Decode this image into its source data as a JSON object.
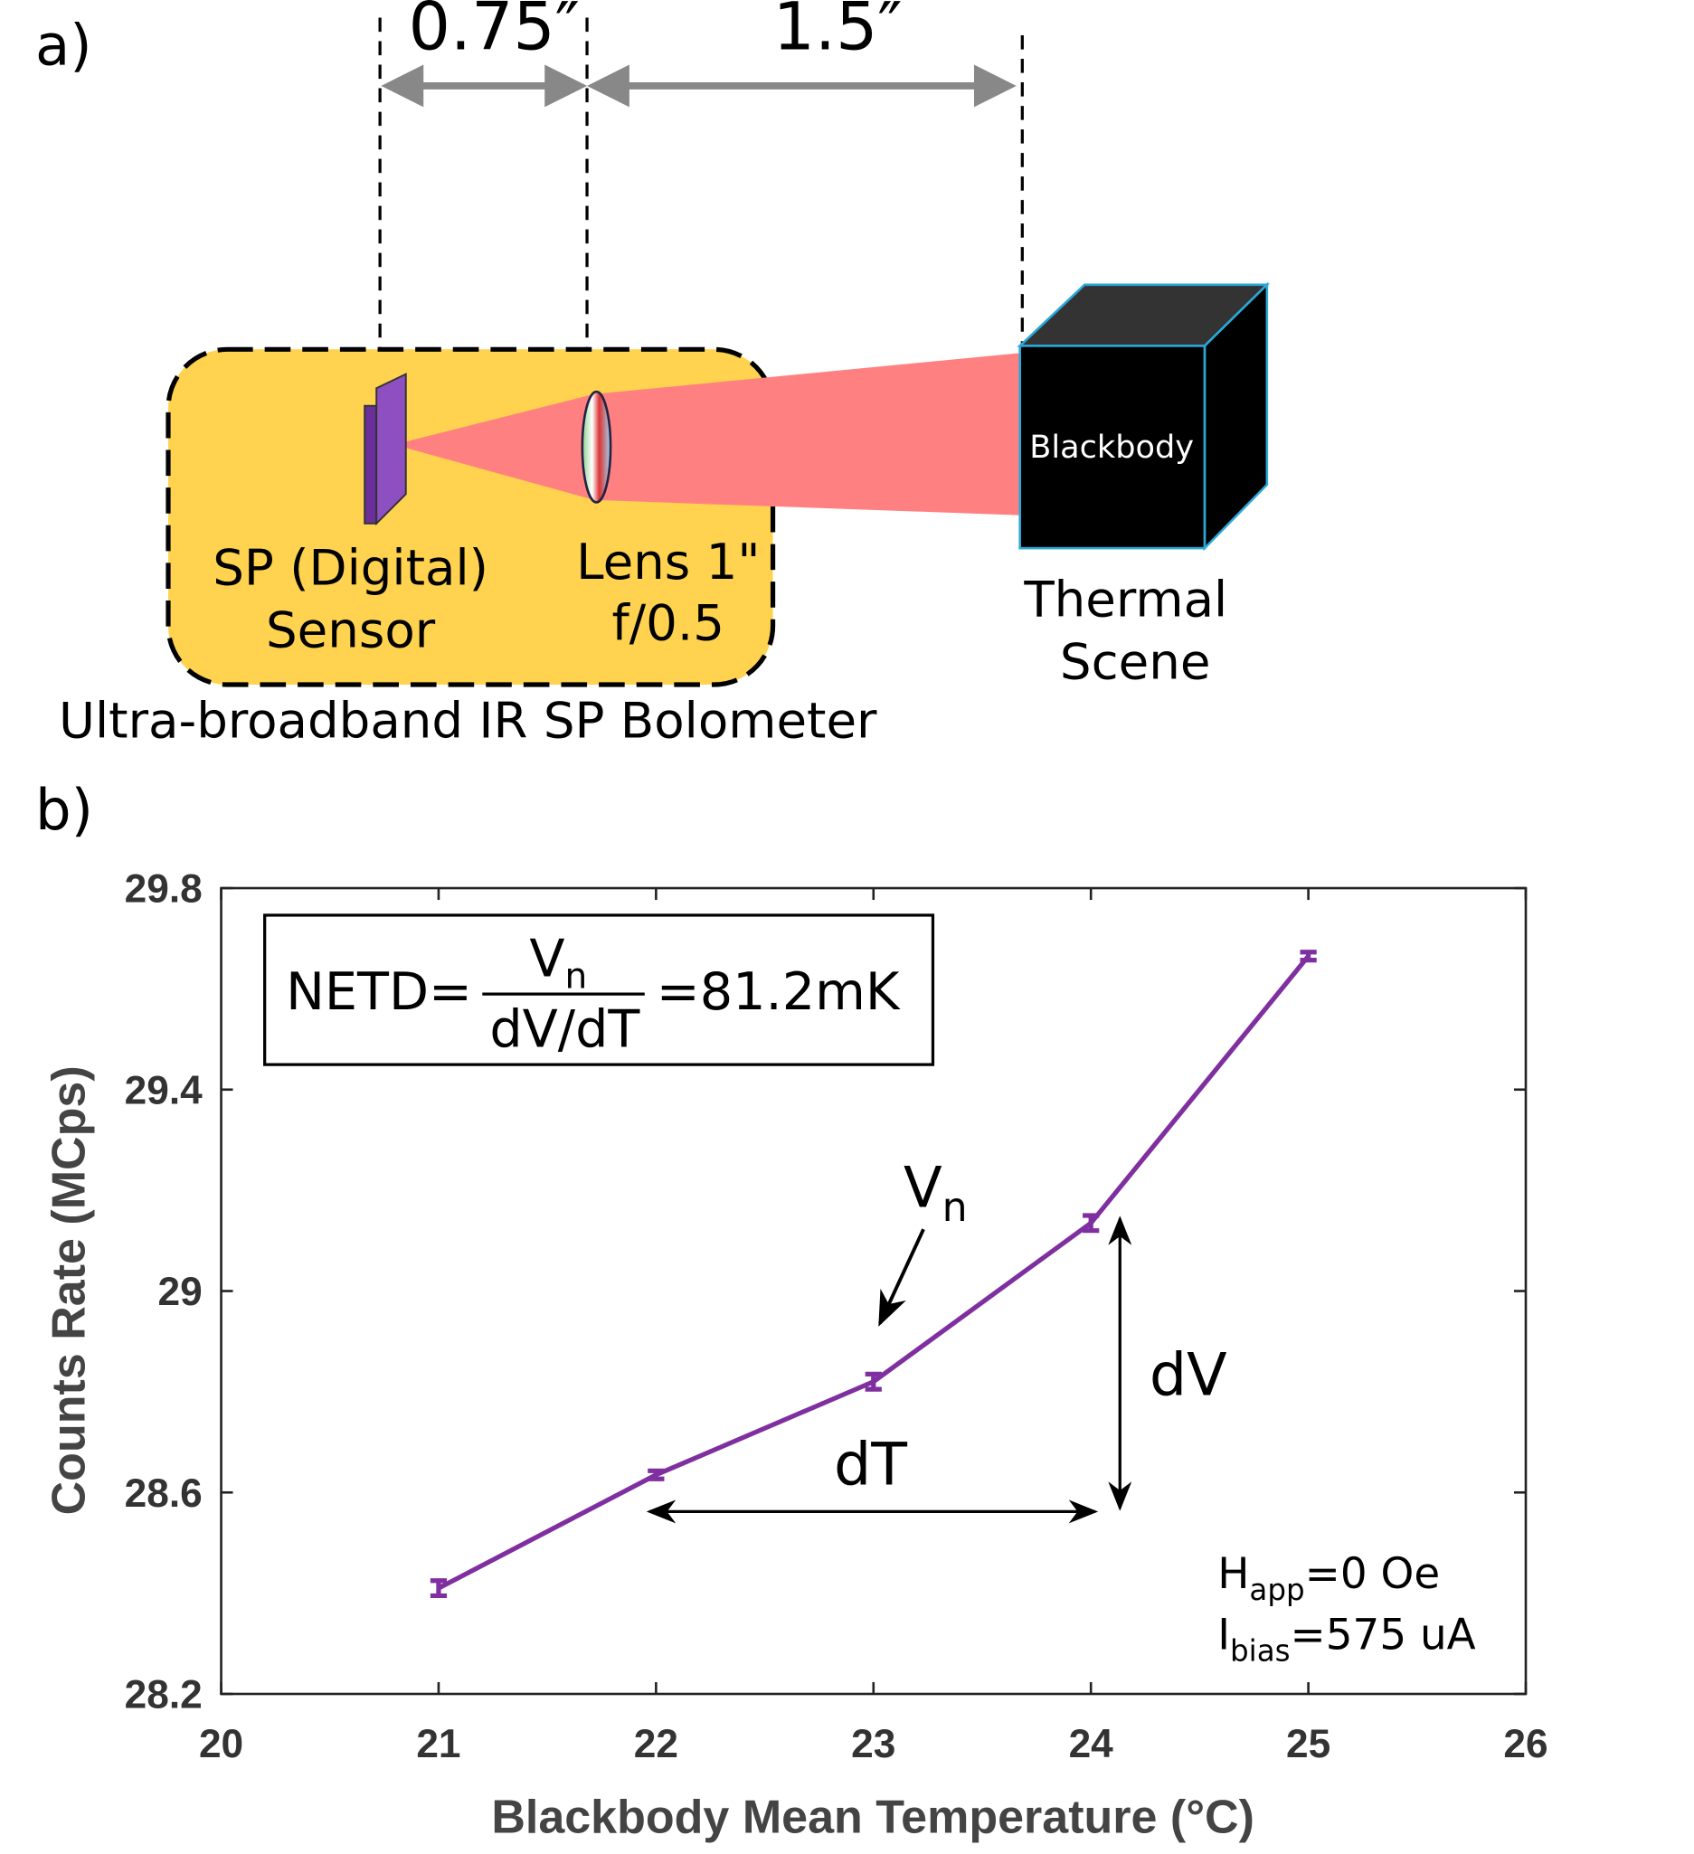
{
  "diagram": {
    "panel_label": "a)",
    "spacing_1": "0.75″",
    "spacing_2": "1.5″",
    "sensor_label": [
      "SP (Digital)",
      "Sensor"
    ],
    "lens_label": [
      "Lens 1\"",
      "f/0.5"
    ],
    "blackbody_label": "Blackbody",
    "scene_label": [
      "Thermal",
      "Scene"
    ],
    "caption": "Ultra-broadband IR SP Bolometer"
  },
  "chart_data": {
    "panel_label": "b)",
    "type": "line",
    "x": [
      21,
      22,
      23,
      24,
      25
    ],
    "values": [
      28.41,
      28.635,
      28.82,
      29.135,
      29.665
    ],
    "errors": [
      0.015,
      0.008,
      0.015,
      0.015,
      0.008
    ],
    "color": "#7f2f9f",
    "xlim": [
      20,
      26
    ],
    "xticks": [
      20,
      21,
      22,
      23,
      24,
      25,
      26
    ],
    "ylim": [
      28.2,
      29.8
    ],
    "yticks": [
      28.2,
      28.6,
      29,
      29.4,
      29.8
    ],
    "xlabel": "Blackbody Mean Temperature (°C)",
    "ylabel": "Counts Rate (MCps)",
    "annotations": {
      "netd": {
        "lhs": "NETD=",
        "numerator": "V",
        "numerator_sub": "n",
        "denominator": "dV/dT",
        "rhs": "=81.2mK"
      },
      "vn": {
        "text": "V",
        "sub": "n"
      },
      "dv": "dV",
      "dt": "dT",
      "h": {
        "text": "H",
        "sub": "app",
        "rest": "=0 Oe"
      },
      "i": {
        "text": "I",
        "sub": "bias",
        "rest": "=575 uA"
      }
    }
  }
}
